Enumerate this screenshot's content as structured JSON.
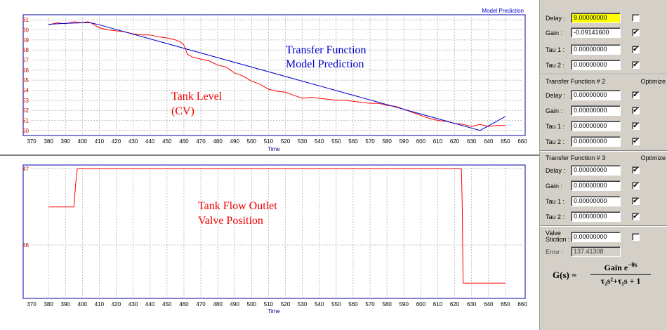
{
  "charts": {
    "top": {
      "corner_label": "Model Prediction",
      "xlabel": "Time",
      "annotations": {
        "transfer_line1": "Transfer Function",
        "transfer_line2": "Model Prediction",
        "tank_line1": "Tank Level",
        "tank_line2": "(CV)"
      }
    },
    "bottom": {
      "xlabel": "Time",
      "annotations": {
        "flow_line1": "Tank Flow Outlet",
        "flow_line2": "Valve Position"
      }
    }
  },
  "chart_data": [
    {
      "type": "line",
      "title": "",
      "xlabel": "Time",
      "ylabel": "",
      "xlim": [
        370,
        660
      ],
      "ylim": [
        49.5,
        61.5
      ],
      "x_ticks": [
        370,
        380,
        390,
        400,
        410,
        420,
        430,
        440,
        450,
        460,
        470,
        480,
        490,
        500,
        510,
        520,
        530,
        540,
        550,
        560,
        570,
        580,
        590,
        600,
        610,
        620,
        630,
        640,
        650,
        660
      ],
      "y_ticks": [
        50,
        51,
        52,
        53,
        54,
        55,
        56,
        57,
        58,
        59,
        60,
        61
      ],
      "grid": true,
      "series": [
        {
          "color": "#ff0000",
          "x": [
            380,
            385,
            390,
            395,
            400,
            403,
            405,
            410,
            415,
            420,
            425,
            430,
            435,
            440,
            445,
            450,
            455,
            458,
            460,
            462,
            465,
            470,
            475,
            480,
            485,
            490,
            495,
            500,
            505,
            510,
            515,
            520,
            525,
            530,
            535,
            540,
            545,
            550,
            555,
            560,
            565,
            570,
            575,
            580,
            585,
            590,
            595,
            600,
            605,
            610,
            615,
            620,
            625,
            630,
            635,
            640,
            645,
            650
          ],
          "y": [
            60.5,
            60.7,
            60.6,
            60.8,
            60.7,
            60.8,
            60.7,
            60.2,
            60.0,
            59.9,
            59.8,
            59.6,
            59.5,
            59.5,
            59.3,
            59.2,
            59.0,
            58.8,
            58.5,
            57.6,
            57.3,
            57.1,
            56.9,
            56.5,
            56.3,
            55.7,
            55.4,
            54.9,
            54.6,
            54.1,
            53.9,
            53.8,
            53.5,
            53.2,
            53.3,
            53.2,
            53.1,
            53.0,
            53.0,
            52.9,
            52.8,
            52.7,
            52.7,
            52.5,
            52.4,
            52.1,
            51.8,
            51.5,
            51.2,
            51.0,
            50.9,
            50.7,
            50.6,
            50.4,
            50.6,
            50.4,
            50.5,
            50.5
          ]
        },
        {
          "color": "#0000cc",
          "x": [
            380,
            390,
            400,
            405,
            410,
            635,
            650
          ],
          "y": [
            60.55,
            60.65,
            60.7,
            60.7,
            60.5,
            50.0,
            51.4
          ]
        }
      ]
    },
    {
      "type": "line",
      "title": "",
      "xlabel": "Time",
      "ylabel": "",
      "xlim": [
        370,
        660
      ],
      "ylim": [
        45.3,
        47.05
      ],
      "x_ticks": [
        370,
        380,
        390,
        400,
        410,
        420,
        430,
        440,
        450,
        460,
        470,
        480,
        490,
        500,
        510,
        520,
        530,
        540,
        550,
        560,
        570,
        580,
        590,
        600,
        610,
        620,
        630,
        640,
        650,
        660
      ],
      "y_ticks": [
        46,
        47
      ],
      "grid": true,
      "series": [
        {
          "color": "#ff0000",
          "x": [
            380,
            395,
            396,
            397,
            398,
            624,
            624.5,
            625,
            650
          ],
          "y": [
            46.5,
            46.5,
            46.8,
            47.0,
            47.0,
            47.0,
            46.5,
            45.5,
            45.5
          ]
        }
      ]
    }
  ],
  "panel": {
    "tf1": {
      "delay_label": "Delay :",
      "delay_value": "9.00000000",
      "delay_checked": "",
      "gain_label": "Gain :",
      "gain_value": "-0.09141600",
      "gain_checked": "✔",
      "tau1_label": "Tau 1 :",
      "tau1_value": "0.00000000",
      "tau1_checked": "✔",
      "tau2_label": "Tau 2 :",
      "tau2_value": "0.00000000",
      "tau2_checked": "✔"
    },
    "tf2": {
      "title": "Transfer Function # 2",
      "optimize": "Optimize",
      "delay_label": "Delay :",
      "delay_value": "0.00000000",
      "delay_checked": "✔",
      "gain_label": "Gain :",
      "gain_value": "0.00000000",
      "gain_checked": "✔",
      "tau1_label": "Tau 1 :",
      "tau1_value": "0.00000000",
      "tau1_checked": "✔",
      "tau2_label": "Tau 2 :",
      "tau2_value": "0.00000000",
      "tau2_checked": "✔"
    },
    "tf3": {
      "title": "Transfer Function # 3",
      "optimize": "Optimize",
      "delay_label": "Delay :",
      "delay_value": "0.00000000",
      "delay_checked": "✔",
      "gain_label": "Gain :",
      "gain_value": "0.00000000",
      "gain_checked": "✔",
      "tau1_label": "Tau 1 :",
      "tau1_value": "0.00000000",
      "tau1_checked": "✔",
      "tau2_label": "Tau 2 :",
      "tau2_value": "0.00000000",
      "tau2_checked": "✔"
    },
    "stiction_label": "Valve Stiction :",
    "stiction_value": "0.00000000",
    "stiction_checked": "",
    "error_label": "Error :",
    "error_value": "137.41308",
    "formula": {
      "lhs": "G(s) =",
      "numerator": "Gain e",
      "exponent": "−θs",
      "denominator": "τ₂s²+τ₁s + 1"
    }
  }
}
